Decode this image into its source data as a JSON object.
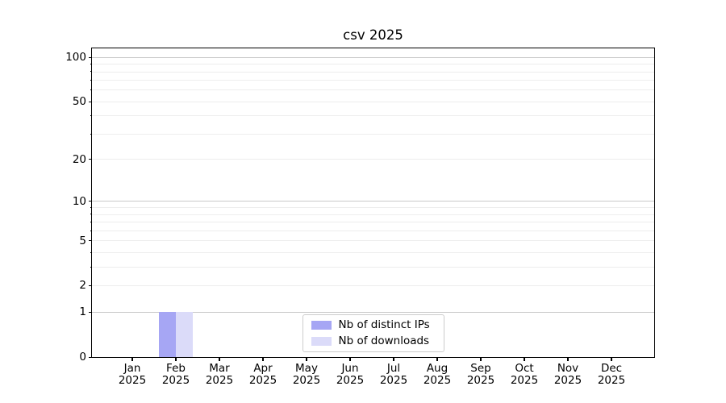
{
  "chart_data": {
    "type": "bar",
    "title": "csv 2025",
    "categories": [
      "Jan 2025",
      "Feb 2025",
      "Mar 2025",
      "Apr 2025",
      "May 2025",
      "Jun 2025",
      "Jul 2025",
      "Aug 2025",
      "Sep 2025",
      "Oct 2025",
      "Nov 2025",
      "Dec 2025"
    ],
    "series": [
      {
        "name": "Nb of distinct IPs",
        "color": "#a6a6f4",
        "values": [
          0,
          1,
          0,
          0,
          0,
          0,
          0,
          0,
          0,
          0,
          0,
          0
        ]
      },
      {
        "name": "Nb of downloads",
        "color": "#dbdbf9",
        "values": [
          0,
          1,
          0,
          0,
          0,
          0,
          0,
          0,
          0,
          0,
          0,
          0
        ]
      }
    ],
    "xlabel": "",
    "ylabel": "",
    "y_scale": "log1p",
    "ylim": [
      0,
      115
    ],
    "y_tick_values": [
      0,
      1,
      2,
      5,
      10,
      20,
      50,
      100
    ],
    "y_tick_labels": [
      "0",
      "1",
      "2",
      "5",
      "10",
      "20",
      "50",
      "100"
    ],
    "gridlines": {
      "orientation": "horizontal",
      "major": [
        1,
        10,
        100
      ],
      "minor": [
        2,
        3,
        4,
        5,
        6,
        7,
        8,
        9,
        20,
        30,
        40,
        50,
        60,
        70,
        80,
        90
      ]
    },
    "legend": {
      "position": "lower center",
      "entries": [
        "Nb of distinct IPs",
        "Nb of downloads"
      ]
    }
  },
  "colors": {
    "background": "#ffffff",
    "spine": "#000000",
    "text": "#000000",
    "major_grid": "#c8c8c8",
    "minor_grid": "#ededed",
    "legend_border": "#cccccc"
  }
}
